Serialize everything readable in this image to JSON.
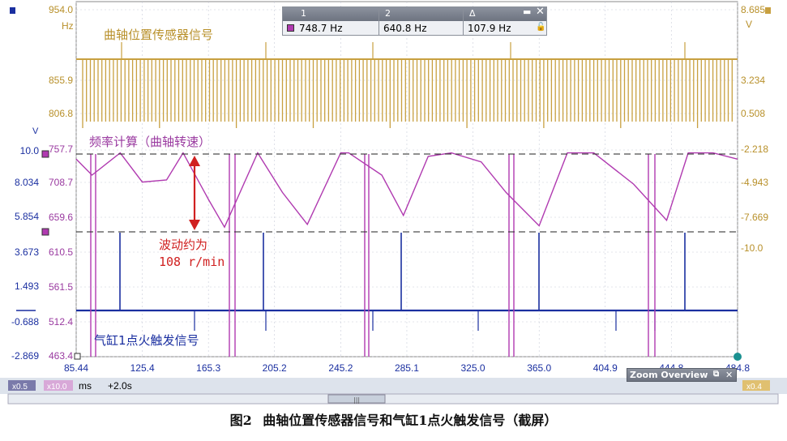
{
  "chart_data": {
    "type": "line",
    "x_ticks": [
      "85.44",
      "125.4",
      "165.3",
      "205.2",
      "245.2",
      "285.1",
      "325.0",
      "365.0",
      "404.9",
      "444.8",
      "484.8"
    ],
    "x_unit": "ms",
    "x_offset_label": "+2.0s",
    "zoom_badges": [
      "x0.5",
      "x10.0",
      "x0.4"
    ],
    "axes": {
      "left_outer": {
        "unit": "V",
        "ticks": [
          "10.0",
          "8.034",
          "5.854",
          "3.673",
          "1.493",
          "-0.688",
          "-2.869"
        ]
      },
      "left_inner": {
        "unit": "Hz",
        "ticks": [
          "954.0",
          "855.9",
          "806.8",
          "757.7",
          "708.7",
          "659.6",
          "610.5",
          "561.5",
          "512.4",
          "463.4"
        ]
      },
      "right": {
        "unit": "V",
        "ticks": [
          "8.685",
          "3.234",
          "0.508",
          "-2.218",
          "-4.943",
          "-7.669",
          "-10.0"
        ]
      }
    },
    "series": [
      {
        "name": "曲轴位置传感器信号",
        "color": "#c8a040",
        "kind": "square-pulse"
      },
      {
        "name": "频率计算（曲轴转速）",
        "color": "#b03ab0",
        "kind": "frequency",
        "x": [
          85.44,
          95,
          112,
          125.4,
          140,
          150,
          165.3,
          175,
          195,
          210,
          225,
          245.2,
          250,
          270,
          283,
          298,
          312,
          330,
          345,
          365,
          382,
          398,
          422,
          442,
          455,
          470,
          484.8
        ],
        "y": [
          748,
          725,
          757,
          715,
          718,
          757,
          690,
          650,
          757,
          700,
          654,
          757,
          757,
          725,
          667,
          752,
          757,
          744,
          700,
          652,
          757,
          757,
          712,
          660,
          757,
          757,
          748
        ]
      },
      {
        "name": "气缸1点火触发信号",
        "color": "#1a2fa0",
        "kind": "trigger"
      }
    ],
    "cursor": {
      "col1": "1",
      "col2": "2",
      "col3": "Δ",
      "v1": "748.7 Hz",
      "v2": "640.8 Hz",
      "v3": "107.9 Hz"
    },
    "annotation": {
      "line1": "波动约为",
      "line2": "108 r/min"
    },
    "zoom_overview": "Zoom Overview"
  },
  "caption": {
    "fig": "图2",
    "text": "曲轴位置传感器信号和气缸1点火触发信号（截屏）"
  }
}
